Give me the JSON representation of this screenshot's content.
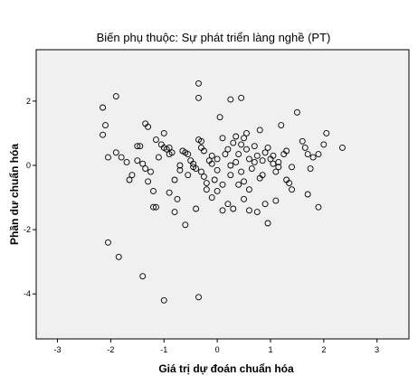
{
  "chart_data": {
    "type": "scatter",
    "title": "Biến phụ thuộc: Sự phát triển làng nghề (PT)",
    "xlabel": "Giá trị dự đoán chuẩn hóa",
    "ylabel": "Phần dư chuẩn hóa",
    "xlim": [
      -3.4,
      3.6
    ],
    "ylim": [
      -5.4,
      3.6
    ],
    "xticks": [
      "-3",
      "-2",
      "-1",
      "0",
      "1",
      "2",
      "3"
    ],
    "xtick_values": [
      -3,
      -2,
      -1,
      0,
      1,
      2,
      3
    ],
    "yticks": [
      "2",
      "0",
      "-2",
      "-4"
    ],
    "ytick_values": [
      2,
      0,
      -2,
      -4
    ],
    "grid": false,
    "background": "#f0f0f0",
    "marker": "hollow circle",
    "points": [
      [
        -2.15,
        1.8
      ],
      [
        -2.1,
        1.25
      ],
      [
        -1.9,
        2.15
      ],
      [
        -2.15,
        0.95
      ],
      [
        -2.05,
        0.25
      ],
      [
        -1.9,
        0.4
      ],
      [
        -1.8,
        0.25
      ],
      [
        -1.7,
        0.1
      ],
      [
        -1.65,
        -0.45
      ],
      [
        -1.6,
        -0.3
      ],
      [
        -1.5,
        0.6
      ],
      [
        -1.45,
        0.6
      ],
      [
        -1.4,
        0.05
      ],
      [
        -1.35,
        1.3
      ],
      [
        -1.3,
        1.2
      ],
      [
        -1.35,
        -0.1
      ],
      [
        -1.3,
        -0.5
      ],
      [
        -1.25,
        -0.2
      ],
      [
        -1.2,
        -0.8
      ],
      [
        -1.15,
        -1.3
      ],
      [
        -1.1,
        0.25
      ],
      [
        -1.05,
        0.65
      ],
      [
        -1.0,
        0.55
      ],
      [
        -1.0,
        1.0
      ],
      [
        -0.95,
        0.5
      ],
      [
        -0.9,
        0.35
      ],
      [
        -0.85,
        0.4
      ],
      [
        -0.8,
        -0.45
      ],
      [
        -0.75,
        -1.05
      ],
      [
        -0.7,
        0.0
      ],
      [
        -0.65,
        0.45
      ],
      [
        -0.6,
        0.4
      ],
      [
        -0.55,
        -0.3
      ],
      [
        -0.5,
        0.15
      ],
      [
        -0.45,
        0.05
      ],
      [
        -0.4,
        -0.1
      ],
      [
        -0.35,
        0.8
      ],
      [
        -0.3,
        0.55
      ],
      [
        -0.3,
        -0.2
      ],
      [
        -0.25,
        -0.35
      ],
      [
        -0.2,
        -0.55
      ],
      [
        -0.15,
        0.15
      ],
      [
        -0.1,
        0.3
      ],
      [
        -0.05,
        -0.45
      ],
      [
        0.0,
        0.2
      ],
      [
        0.05,
        1.5
      ],
      [
        0.1,
        -0.6
      ],
      [
        0.15,
        0.35
      ],
      [
        0.2,
        0.5
      ],
      [
        0.25,
        -0.3
      ],
      [
        0.3,
        0.7
      ],
      [
        0.35,
        0.9
      ],
      [
        0.4,
        0.35
      ],
      [
        0.45,
        0.65
      ],
      [
        0.5,
        -0.5
      ],
      [
        0.55,
        1.0
      ],
      [
        0.6,
        0.2
      ],
      [
        0.65,
        -0.1
      ],
      [
        0.7,
        0.6
      ],
      [
        0.75,
        0.3
      ],
      [
        0.8,
        -0.4
      ],
      [
        0.85,
        0.15
      ],
      [
        0.9,
        0.4
      ],
      [
        0.95,
        0.55
      ],
      [
        1.0,
        0.2
      ],
      [
        1.05,
        0.05
      ],
      [
        1.1,
        -0.2
      ],
      [
        1.15,
        0.1
      ],
      [
        1.2,
        1.25
      ],
      [
        1.25,
        0.35
      ],
      [
        1.3,
        -0.45
      ],
      [
        1.35,
        -0.55
      ],
      [
        1.4,
        -0.05
      ],
      [
        1.5,
        1.65
      ],
      [
        1.6,
        0.75
      ],
      [
        1.65,
        0.55
      ],
      [
        1.7,
        0.35
      ],
      [
        1.75,
        -0.1
      ],
      [
        1.8,
        0.25
      ],
      [
        1.9,
        0.35
      ],
      [
        2.0,
        0.65
      ],
      [
        2.05,
        1.0
      ],
      [
        2.35,
        0.55
      ],
      [
        1.9,
        -1.3
      ],
      [
        1.7,
        -0.9
      ],
      [
        1.4,
        -0.75
      ],
      [
        1.1,
        -1.1
      ],
      [
        0.9,
        -1.2
      ],
      [
        0.75,
        -1.45
      ],
      [
        0.6,
        -1.4
      ],
      [
        0.5,
        -1.05
      ],
      [
        0.4,
        -0.6
      ],
      [
        0.3,
        -1.35
      ],
      [
        0.2,
        -1.2
      ],
      [
        0.1,
        -1.4
      ],
      [
        0.0,
        -0.8
      ],
      [
        -0.1,
        -1.0
      ],
      [
        -0.2,
        -0.75
      ],
      [
        -0.4,
        -1.35
      ],
      [
        -0.6,
        -1.85
      ],
      [
        -0.9,
        -0.85
      ],
      [
        -1.2,
        -1.3
      ],
      [
        -0.8,
        -1.45
      ],
      [
        0.95,
        -1.8
      ],
      [
        -2.05,
        -2.4
      ],
      [
        -1.85,
        -2.85
      ],
      [
        -1.4,
        -3.45
      ],
      [
        -1.0,
        -4.2
      ],
      [
        -0.35,
        -4.1
      ],
      [
        -0.35,
        2.55
      ],
      [
        -0.35,
        2.1
      ],
      [
        0.25,
        2.05
      ],
      [
        0.45,
        2.1
      ],
      [
        -1.5,
        0.15
      ],
      [
        -1.15,
        0.8
      ],
      [
        -0.7,
        -0.15
      ],
      [
        -0.45,
        -0.05
      ],
      [
        -0.1,
        0.05
      ],
      [
        0.0,
        -0.15
      ],
      [
        0.25,
        0.0
      ],
      [
        0.45,
        -0.2
      ],
      [
        0.55,
        0.5
      ],
      [
        0.7,
        0.1
      ],
      [
        0.85,
        -0.3
      ],
      [
        1.05,
        0.3
      ],
      [
        1.15,
        -0.05
      ],
      [
        1.3,
        0.45
      ],
      [
        -0.55,
        0.35
      ],
      [
        -0.25,
        0.45
      ],
      [
        0.1,
        0.85
      ],
      [
        0.35,
        0.1
      ],
      [
        0.6,
        -0.75
      ],
      [
        -0.9,
        0.55
      ],
      [
        -0.3,
        0.75
      ],
      [
        0.5,
        0.85
      ],
      [
        0.8,
        1.1
      ]
    ]
  }
}
